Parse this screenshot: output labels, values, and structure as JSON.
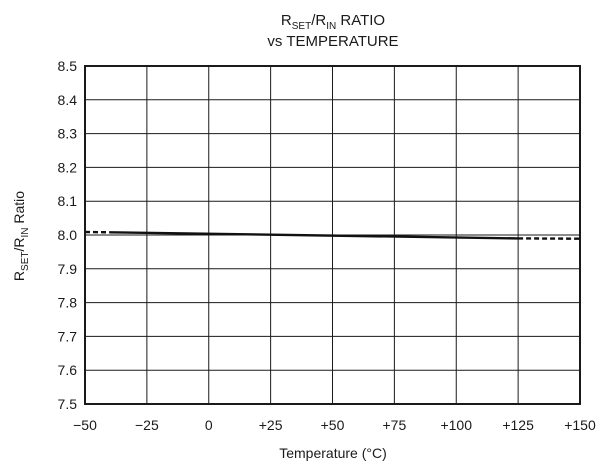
{
  "chart_data": {
    "type": "line",
    "title_line1_parts": [
      {
        "text": "R",
        "sub": false
      },
      {
        "text": "SET",
        "sub": true
      },
      {
        "text": "/R",
        "sub": false
      },
      {
        "text": "IN",
        "sub": true
      },
      {
        "text": " RATIO",
        "sub": false
      }
    ],
    "title_line2": "vs TEMPERATURE",
    "xlabel": "Temperature (°C)",
    "ylabel_parts": [
      {
        "text": "R",
        "sub": false
      },
      {
        "text": "SET",
        "sub": true
      },
      {
        "text": "/R",
        "sub": false
      },
      {
        "text": "IN",
        "sub": true
      },
      {
        "text": " Ratio",
        "sub": false
      }
    ],
    "xlim": [
      -50,
      150
    ],
    "ylim": [
      7.5,
      8.5
    ],
    "x_ticks": [
      -50,
      -25,
      0,
      25,
      50,
      75,
      100,
      125,
      150
    ],
    "x_tick_labels": [
      "−50",
      "−25",
      "0",
      "+25",
      "+50",
      "+75",
      "+100",
      "+125",
      "+150"
    ],
    "y_ticks": [
      7.5,
      7.6,
      7.7,
      7.8,
      7.9,
      8.0,
      8.1,
      8.2,
      8.3,
      8.4,
      8.5
    ],
    "y_tick_labels": [
      "7.5",
      "7.6",
      "7.7",
      "7.8",
      "7.9",
      "8.0",
      "8.1",
      "8.2",
      "8.3",
      "8.4",
      "8.5"
    ],
    "grid": true,
    "series": [
      {
        "style": "solid",
        "x": [
          -40,
          125
        ],
        "y": [
          8.008,
          7.99
        ]
      },
      {
        "style": "dashed",
        "x": [
          -50,
          -40
        ],
        "y": [
          8.009,
          8.008
        ]
      },
      {
        "style": "dashed",
        "x": [
          125,
          150
        ],
        "y": [
          7.99,
          7.989
        ]
      }
    ]
  }
}
